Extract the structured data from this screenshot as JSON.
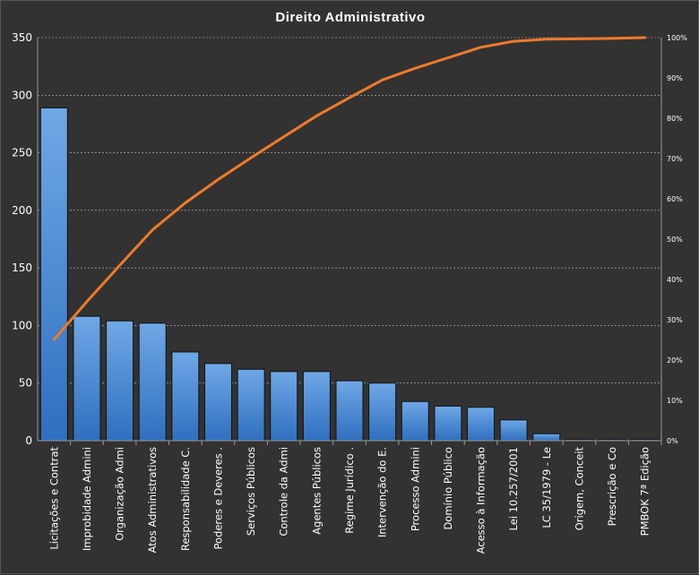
{
  "chart_data": {
    "type": "bar",
    "title": "Direito  Administrativo",
    "categories": [
      "Licitações e Contrat",
      "Improbidade  Admini",
      "Organização Admi",
      "Atos Administrativos",
      "Responsabilidade C.",
      "Poderes e Deveres .",
      "Serviços Públicos",
      "Controle da Admi",
      "Agentes Públicos",
      "Regime Jurídico  .",
      "Intervenção do E.",
      "Processo Admini",
      "Domínio Público",
      "Acesso à Informação",
      "Lei 10.257/2001",
      "LC 35/1979  - Le",
      "Origem, Conceit",
      "Prescrição e Co",
      "PMBOK 7ª Edição"
    ],
    "series": [
      {
        "type": "bar",
        "values": [
          289,
          108,
          104,
          102,
          77,
          67,
          62,
          60,
          60,
          52,
          50,
          34,
          30,
          29,
          18,
          6,
          1,
          1,
          1
        ]
      },
      {
        "type": "line",
        "axis": "secondary",
        "values": [
          25.1,
          34.5,
          43.5,
          52.3,
          59.0,
          64.8,
          70.2,
          75.4,
          80.6,
          85.1,
          89.5,
          92.4,
          95.0,
          97.6,
          99.1,
          99.6,
          99.7,
          99.8,
          100.0
        ]
      }
    ],
    "ylim": [
      0,
      350
    ],
    "yticks": [
      "0",
      "50",
      "100",
      "150",
      "200",
      "250",
      "300",
      "350"
    ],
    "y2lim": [
      0,
      100
    ],
    "y2ticks": [
      "0%",
      "10%",
      "20%",
      "30%",
      "40%",
      "50%",
      "60%",
      "70%",
      "80%",
      "90%",
      "100%"
    ],
    "grid": true,
    "colors": {
      "bar_top": "#6fa8e6",
      "bar_bottom": "#2f6fbf",
      "bar_edge": "#111111",
      "line": "#f07a2a",
      "background": "#323232"
    }
  }
}
